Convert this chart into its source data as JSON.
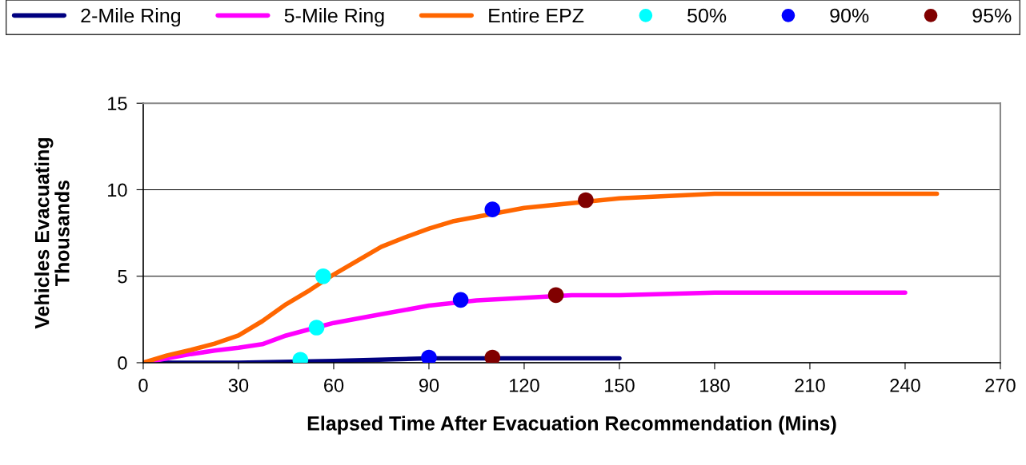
{
  "chart_data": {
    "type": "line",
    "xlabel": "Elapsed Time After Evacuation Recommendation (Mins)",
    "ylabel": "Vehicles Evacuating\nThousands",
    "xlim": [
      0,
      270
    ],
    "xticks": [
      0,
      30,
      60,
      90,
      120,
      150,
      180,
      210,
      240,
      270
    ],
    "ylim": [
      0,
      15
    ],
    "yticks": [
      0,
      5,
      10,
      15
    ],
    "grid": "y",
    "legend": "top",
    "line_style": "solid",
    "series": [
      {
        "name": "2-Mile Ring",
        "color": "#000080",
        "x": [
          0,
          30,
          60,
          90,
          150
        ],
        "values": [
          0,
          0,
          0.1,
          0.25,
          0.25
        ]
      },
      {
        "name": "5-Mile Ring",
        "color": "#ff00ff",
        "x": [
          0,
          7.5,
          15,
          22.5,
          30,
          37.5,
          45,
          52.5,
          60,
          75,
          90,
          105,
          120,
          135,
          150,
          180,
          240
        ],
        "values": [
          0,
          0.25,
          0.5,
          0.7,
          0.86,
          1.07,
          1.57,
          1.94,
          2.3,
          2.8,
          3.3,
          3.6,
          3.75,
          3.9,
          3.9,
          4.05,
          4.05
        ]
      },
      {
        "name": "Entire EPZ",
        "color": "#ff6600",
        "x": [
          0,
          7.5,
          15,
          22.5,
          30,
          37.5,
          45,
          52.5,
          60,
          75,
          82.5,
          90,
          97.5,
          120,
          150,
          180,
          250
        ],
        "values": [
          0,
          0.42,
          0.74,
          1.1,
          1.57,
          2.4,
          3.38,
          4.2,
          5.1,
          6.7,
          7.25,
          7.75,
          8.17,
          8.95,
          9.5,
          9.77,
          9.77
        ]
      },
      {
        "name": "50%",
        "type": "scatter",
        "marker": "circle",
        "color": "#00ffff",
        "x": [
          49.5,
          54.6,
          56.7
        ],
        "values": [
          0.17,
          2.03,
          5.0
        ]
      },
      {
        "name": "90%",
        "type": "scatter",
        "marker": "circle",
        "color": "#0000ff",
        "x": [
          90,
          100,
          110
        ],
        "values": [
          0.3,
          3.63,
          8.86
        ]
      },
      {
        "name": "95%",
        "type": "scatter",
        "marker": "circle",
        "color": "#800000",
        "x": [
          110,
          130,
          139.4
        ],
        "values": [
          0.3,
          3.91,
          9.4
        ]
      }
    ]
  }
}
